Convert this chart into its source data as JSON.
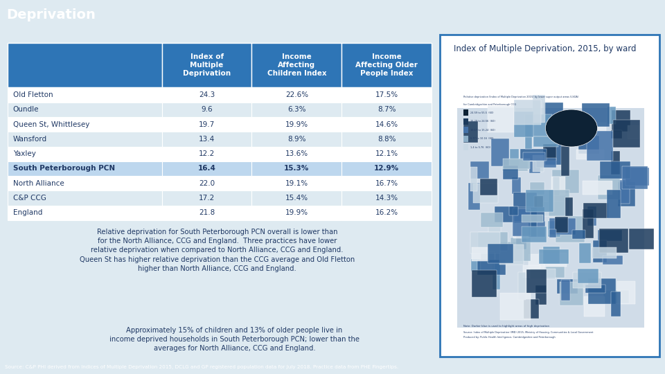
{
  "title": "Deprivation",
  "title_bg": "#2E75B6",
  "title_color": "#FFFFFF",
  "map_title": "Index of Multiple Deprivation, 2015, by ward",
  "col_headers": [
    "Index of\nMultiple\nDeprivation",
    "Income\nAffecting\nChildren Index",
    "Income\nAffecting Older\nPeople Index"
  ],
  "rows": [
    [
      "Old Fletton",
      "24.3",
      "22.6%",
      "17.5%"
    ],
    [
      "Oundle",
      "9.6",
      "6.3%",
      "8.7%"
    ],
    [
      "Queen St, Whittlesey",
      "19.7",
      "19.9%",
      "14.6%"
    ],
    [
      "Wansford",
      "13.4",
      "8.9%",
      "8.8%"
    ],
    [
      "Yaxley",
      "12.2",
      "13.6%",
      "12.1%"
    ],
    [
      "South Peterborough PCN",
      "16.4",
      "15.3%",
      "12.9%"
    ],
    [
      "North Alliance",
      "22.0",
      "19.1%",
      "16.7%"
    ],
    [
      "C&P CCG",
      "17.2",
      "15.4%",
      "14.3%"
    ],
    [
      "England",
      "21.8",
      "19.9%",
      "16.2%"
    ]
  ],
  "highlight_row": 5,
  "header_bg": "#2E75B6",
  "header_color": "#FFFFFF",
  "row_bg_even": "#FFFFFF",
  "row_bg_odd": "#DEEAF1",
  "highlight_bg": "#BDD7EE",
  "highlight_color": "#1F3864",
  "text_color": "#1F3864",
  "outer_bg": "#DEEAF1",
  "content_bg": "#FFFFFF",
  "sidebar_border_color": "#2E75B6",
  "paragraph1": "Relative deprivation for South Peterborough PCN overall is lower than\nfor the North Alliance, CCG and England.  Three practices have lower\nrelative deprivation when compared to North Alliance, CCG and England.\nQueen St has higher relative deprivation than the CCG average and Old Fletton\nhigher than North Alliance, CCG and England.",
  "paragraph2": "Approximately 15% of children and 13% of older people live in\nincome deprived households in South Peterborough PCN; lower than the\naverages for North Alliance, CCG and England.",
  "source_text": "Source: C&P PHI derived from Indices of Multiple Deprivation 2015, DCLG and GP registered population data for July 2018. Practice data from PHE Fingertips.",
  "footer_bg": "#2E75B6",
  "footer_color": "#FFFFFF"
}
